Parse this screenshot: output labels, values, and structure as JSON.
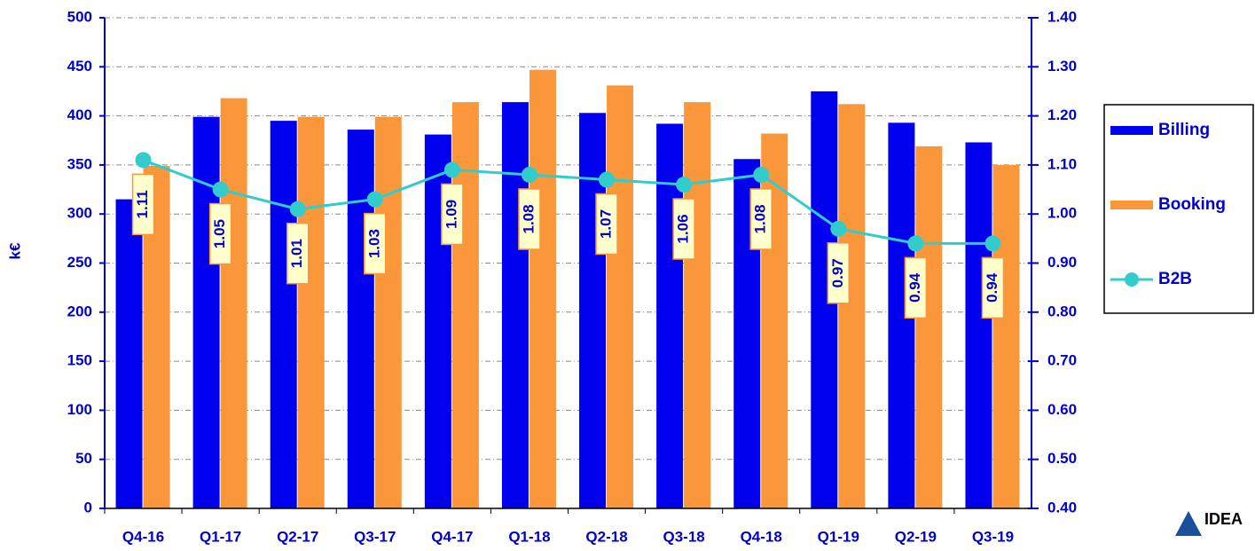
{
  "chart_data": {
    "type": "bar_line",
    "y_label": "k€",
    "categories": [
      "Q4-16",
      "Q1-17",
      "Q2-17",
      "Q3-17",
      "Q4-17",
      "Q1-18",
      "Q2-18",
      "Q3-18",
      "Q4-18",
      "Q1-19",
      "Q2-19",
      "Q3-19"
    ],
    "series": [
      {
        "name": "Billing",
        "color": "#0000ee",
        "type": "bar",
        "values": [
          315,
          399,
          395,
          386,
          381,
          414,
          403,
          392,
          356,
          425,
          393,
          373
        ]
      },
      {
        "name": "Booking",
        "color": "#f9973a",
        "type": "bar",
        "values": [
          349,
          418,
          399,
          399,
          414,
          447,
          431,
          414,
          382,
          412,
          369,
          350
        ]
      },
      {
        "name": "B2B",
        "color": "#33cccc",
        "type": "line",
        "axis": "y2",
        "values": [
          1.11,
          1.05,
          1.01,
          1.03,
          1.09,
          1.08,
          1.07,
          1.06,
          1.08,
          0.97,
          0.94,
          0.94
        ]
      }
    ],
    "ylim": [
      0,
      500
    ],
    "yticks": [
      0,
      50,
      100,
      150,
      200,
      250,
      300,
      350,
      400,
      450,
      500
    ],
    "y2lim": [
      0.4,
      1.4
    ],
    "y2ticks": [
      {
        "value": 0.4,
        "label": "0.40"
      },
      {
        "value": 0.5,
        "label": "0.50"
      },
      {
        "value": 0.6,
        "label": "0.60"
      },
      {
        "value": 0.7,
        "label": "0.70"
      },
      {
        "value": 0.8,
        "label": "0.80"
      },
      {
        "value": 0.9,
        "label": "0.90"
      },
      {
        "value": 1,
        "label": "1.00"
      },
      {
        "value": 1.1,
        "label": "1.10"
      },
      {
        "value": 1.2,
        "label": "1.20"
      },
      {
        "value": 1.3,
        "label": "1.30"
      },
      {
        "value": 1.4,
        "label": "1.40"
      }
    ],
    "grid": true,
    "legend": "right",
    "logo": "IDEA"
  }
}
